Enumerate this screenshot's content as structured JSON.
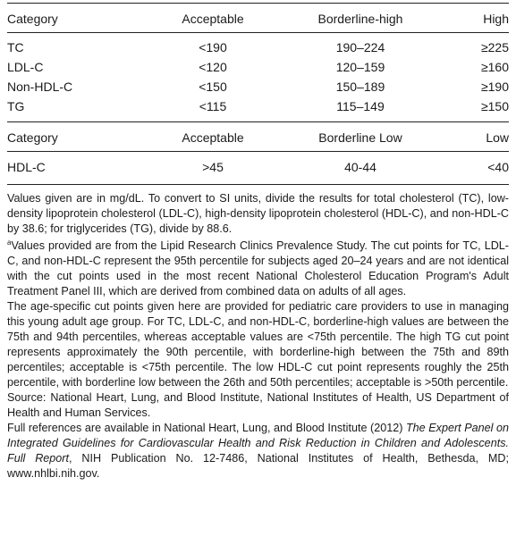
{
  "table1": {
    "headers": [
      "Category",
      "Acceptable",
      "Borderline-high",
      "High"
    ],
    "rows": [
      [
        "TC",
        "<190",
        "190–224",
        "≥225"
      ],
      [
        "LDL-C",
        "<120",
        "120–159",
        "≥160"
      ],
      [
        "Non-HDL-C",
        "<150",
        "150–189",
        "≥190"
      ],
      [
        "TG",
        "<115",
        "115–149",
        "≥150"
      ]
    ]
  },
  "table2": {
    "headers": [
      "Category",
      "Acceptable",
      "Borderline Low",
      "Low"
    ],
    "rows": [
      [
        "HDL-C",
        ">45",
        "40-44",
        "<40"
      ]
    ]
  },
  "notes": {
    "units": "Values given are in mg/dL. To convert to SI units, divide the results for total cholesterol (TC), low-density lipoprotein cholesterol (LDL-C), high-density lipoprotein cholesterol (HDL-C), and non-HDL-C by 38.6; for triglycerides (TG), divide by 88.6.",
    "footnote_marker": "a",
    "footnote_a": "Values provided are from the Lipid Research Clinics Prevalence Study. The cut points for TC, LDL-C, and non-HDL-C represent the 95th percentile for subjects aged 20–24 years and are not identical with the cut points used in the most recent National Cholesterol Education Program's Adult Treatment Panel III, which are derived from combined data on adults of all ages.",
    "age_specific": "The age-specific cut points given here are provided for pediatric care providers to use in managing this young adult age group. For TC, LDL-C, and non-HDL-C, borderline-high values are between the 75th and 94th percentiles, whereas acceptable values are <75th percentile. The high TG cut point represents approximately the 90th percentile, with borderline-high between the 75th and 89th percentiles; acceptable is <75th percentile. The low HDL-C cut point represents roughly the 25th percentile, with borderline low between the 26th and 50th percentiles; acceptable is >50th percentile.",
    "source": "Source: National Heart, Lung, and Blood Institute, National Institutes of Health, US Department of Health and Human Services.",
    "refs_prefix": "Full references are available in National Heart, Lung, and Blood Institute (2012) ",
    "refs_title": "The Expert Panel on Integrated Guidelines for Cardiovascular Health and Risk Reduction in Children and Adolescents. Full Report",
    "refs_suffix": ", NIH Publication No. 12-7486, National Institutes of Health, Bethesda, MD; www.nhlbi.nih.gov."
  }
}
